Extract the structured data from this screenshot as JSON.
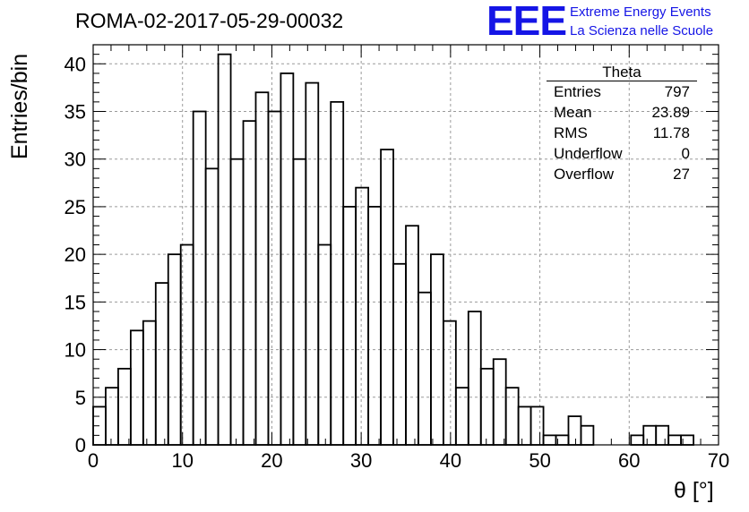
{
  "run_title": "ROMA-02-2017-05-29-00032",
  "logo": {
    "mark": "EEE",
    "line1": "Extreme Energy Events",
    "line2": "La Scienza nelle Scuole",
    "color": "#1515e6"
  },
  "stats_box": {
    "title": "Theta",
    "rows": [
      {
        "label": "Entries",
        "value": "797"
      },
      {
        "label": "Mean",
        "value": "23.89"
      },
      {
        "label": "RMS",
        "value": "11.78"
      },
      {
        "label": "Underflow",
        "value": "0"
      },
      {
        "label": "Overflow",
        "value": "27"
      }
    ]
  },
  "chart_data": {
    "type": "bar",
    "style": "step-histogram",
    "title": "ROMA-02-2017-05-29-00032",
    "xlabel": "θ [°]",
    "ylabel": "Entries/bin",
    "xlim": [
      0,
      70
    ],
    "ylim": [
      0,
      42
    ],
    "grid": true,
    "bin_width": 1.4,
    "x_ticks": [
      "0",
      "10",
      "20",
      "30",
      "40",
      "50",
      "60",
      "70"
    ],
    "y_ticks": [
      "0",
      "5",
      "10",
      "15",
      "20",
      "25",
      "30",
      "35",
      "40"
    ],
    "values": [
      4,
      6,
      8,
      12,
      13,
      17,
      20,
      21,
      35,
      29,
      41,
      30,
      34,
      37,
      35,
      39,
      30,
      38,
      21,
      36,
      25,
      27,
      25,
      31,
      19,
      23,
      16,
      20,
      13,
      6,
      14,
      8,
      9,
      6,
      4,
      4,
      1,
      1,
      3,
      2,
      0,
      0,
      0,
      1,
      2,
      2,
      1,
      1,
      0,
      0
    ]
  }
}
